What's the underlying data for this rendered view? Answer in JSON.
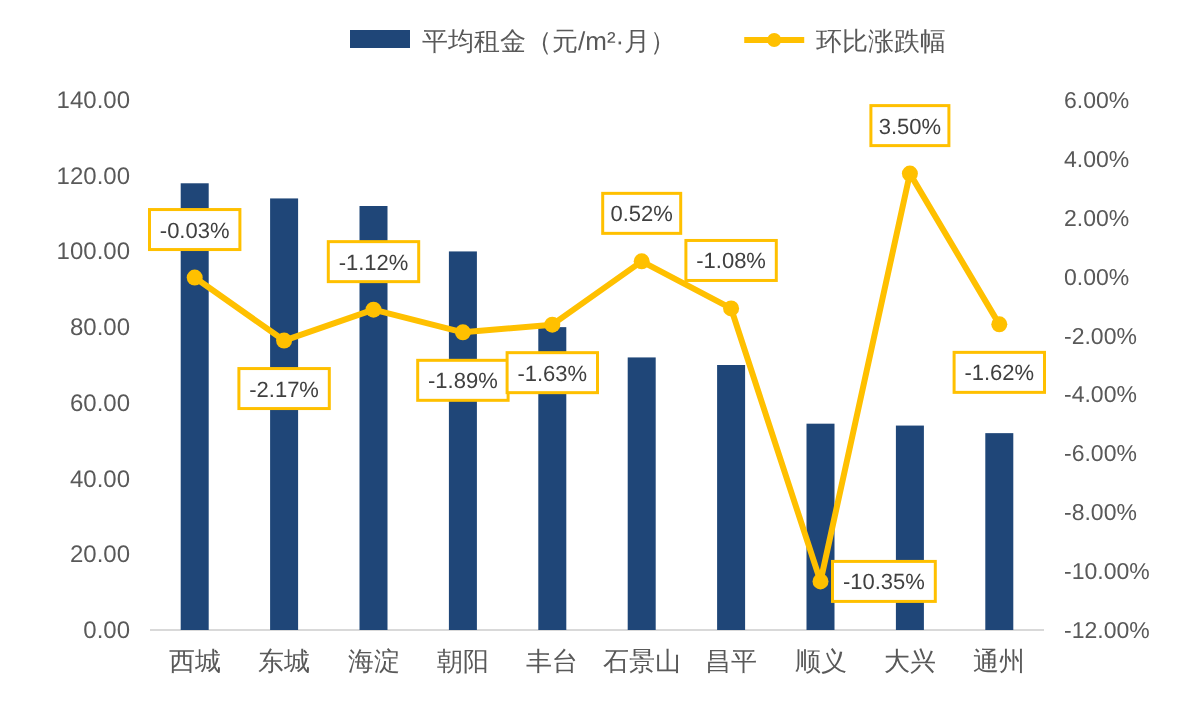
{
  "chart_data": {
    "type": "bar",
    "categories": [
      "西城",
      "东城",
      "海淀",
      "朝阳",
      "丰台",
      "石景山",
      "昌平",
      "顺义",
      "大兴",
      "通州"
    ],
    "series": [
      {
        "name": "平均租金（元/m²·月）",
        "color": "#1f4678",
        "values": [
          118,
          114,
          112,
          100,
          80,
          72,
          70,
          54.5,
          54,
          52
        ]
      },
      {
        "name": "环比涨跌幅",
        "type": "line",
        "axis": "y2",
        "color": "#ffc000",
        "marker": "circle",
        "values": [
          -0.03,
          -2.17,
          -1.12,
          -1.89,
          -1.63,
          0.52,
          -1.08,
          -10.35,
          3.5,
          -1.62
        ],
        "value_labels": [
          "-0.03%",
          "-2.17%",
          "-1.12%",
          "-1.89%",
          "-1.63%",
          "0.52%",
          "-1.08%",
          "-10.35%",
          "3.50%",
          "-1.62%"
        ]
      }
    ],
    "ylim": [
      0,
      140
    ],
    "yticks": [
      {
        "value": 0,
        "label": "0.00"
      },
      {
        "value": 20,
        "label": "20.00"
      },
      {
        "value": 40,
        "label": "40.00"
      },
      {
        "value": 60,
        "label": "60.00"
      },
      {
        "value": 80,
        "label": "80.00"
      },
      {
        "value": 100,
        "label": "100.00"
      },
      {
        "value": 120,
        "label": "120.00"
      },
      {
        "value": 140,
        "label": "140.00"
      }
    ],
    "y2lim": [
      -12,
      6
    ],
    "y2ticks": [
      {
        "value": -12,
        "label": "-12.00%"
      },
      {
        "value": -10,
        "label": "-10.00%"
      },
      {
        "value": -8,
        "label": "-8.00%"
      },
      {
        "value": -6,
        "label": "-6.00%"
      },
      {
        "value": -4,
        "label": "-4.00%"
      },
      {
        "value": -2,
        "label": "-2.00%"
      },
      {
        "value": 0,
        "label": "0.00%"
      },
      {
        "value": 2,
        "label": "2.00%"
      },
      {
        "value": 4,
        "label": "4.00%"
      },
      {
        "value": 6,
        "label": "6.00%"
      }
    ],
    "grid": false,
    "legend": "top"
  }
}
